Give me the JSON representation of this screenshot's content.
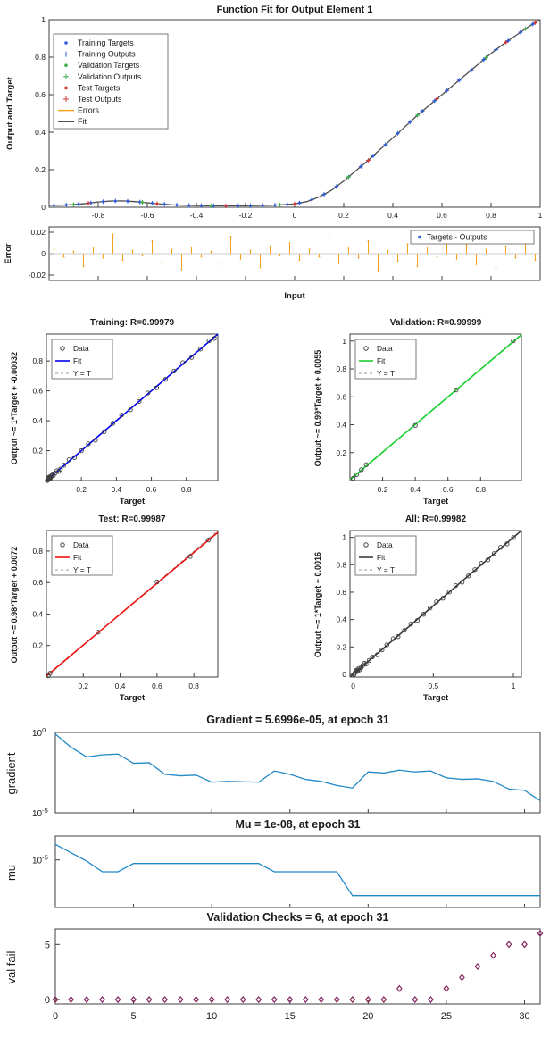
{
  "chart_data": {
    "function_fit": {
      "type": "line",
      "title": "Function Fit for Output Element 1",
      "xlabel": "Input",
      "ylabel": "Output and Target",
      "xlim": [
        -1,
        1
      ],
      "ylim": [
        0,
        1
      ],
      "xticks": [
        -0.8,
        -0.6,
        -0.4,
        -0.2,
        0,
        0.2,
        0.4,
        0.6,
        0.8,
        1
      ],
      "yticks": [
        0,
        0.2,
        0.4,
        0.6,
        0.8,
        1
      ],
      "colors": {
        "training": "#2e5bd7",
        "validation": "#3db04b",
        "test": "#d23a3a",
        "errors": "#f5a21e",
        "fit": "#4d4d4d"
      },
      "legend": [
        {
          "label": "Training Targets",
          "marker": "dot",
          "color": "#2e5bd7"
        },
        {
          "label": "Training Outputs",
          "marker": "plus",
          "color": "#2e5bd7"
        },
        {
          "label": "Validation Targets",
          "marker": "dot",
          "color": "#3db04b"
        },
        {
          "label": "Validation Outputs",
          "marker": "plus",
          "color": "#3db04b"
        },
        {
          "label": "Test Targets",
          "marker": "dot",
          "color": "#d23a3a"
        },
        {
          "label": "Test Outputs",
          "marker": "plus",
          "color": "#d23a3a"
        },
        {
          "label": "Errors",
          "marker": "line",
          "color": "#f5a21e"
        },
        {
          "label": "Fit",
          "marker": "line",
          "color": "#4d4d4d"
        }
      ],
      "fit_curve": {
        "x": [
          -1,
          -0.95,
          -0.9,
          -0.85,
          -0.8,
          -0.75,
          -0.7,
          -0.65,
          -0.6,
          -0.55,
          -0.5,
          -0.45,
          -0.4,
          -0.35,
          -0.3,
          -0.25,
          -0.2,
          -0.15,
          -0.1,
          -0.05,
          0,
          0.05,
          0.1,
          0.15,
          0.2,
          0.25,
          0.3,
          0.35,
          0.4,
          0.45,
          0.5,
          0.55,
          0.6,
          0.65,
          0.7,
          0.75,
          0.8,
          0.85,
          0.9,
          0.95,
          1
        ],
        "y": [
          0.01,
          0.011,
          0.014,
          0.02,
          0.028,
          0.033,
          0.034,
          0.03,
          0.024,
          0.018,
          0.013,
          0.01,
          0.009,
          0.008,
          0.008,
          0.008,
          0.008,
          0.009,
          0.01,
          0.013,
          0.018,
          0.03,
          0.055,
          0.09,
          0.14,
          0.195,
          0.25,
          0.31,
          0.37,
          0.43,
          0.49,
          0.545,
          0.6,
          0.655,
          0.71,
          0.765,
          0.82,
          0.87,
          0.915,
          0.96,
          1.0
        ]
      },
      "train_x": [
        -0.98,
        -0.93,
        -0.88,
        -0.83,
        -0.78,
        -0.73,
        -0.68,
        -0.63,
        -0.58,
        -0.53,
        -0.48,
        -0.43,
        -0.38,
        -0.33,
        -0.28,
        -0.23,
        -0.18,
        -0.13,
        -0.08,
        -0.03,
        0.02,
        0.07,
        0.12,
        0.17,
        0.22,
        0.27,
        0.32,
        0.37,
        0.42,
        0.47,
        0.52,
        0.57,
        0.62,
        0.67,
        0.72,
        0.77,
        0.82,
        0.87,
        0.92,
        0.97
      ],
      "val_x": [
        -0.9,
        -0.62,
        -0.34,
        -0.06,
        0.22,
        0.5,
        0.78,
        0.94
      ],
      "test_x": [
        -0.84,
        -0.56,
        -0.28,
        0,
        0.3,
        0.58,
        0.86,
        0.98
      ],
      "error_plot": {
        "ylabel": "Error",
        "ylim": [
          -0.025,
          0.025
        ],
        "yticks": [
          0.02,
          0,
          -0.02
        ],
        "legend_label": "Targets - Outputs",
        "stems": {
          "x": [
            -0.98,
            -0.94,
            -0.9,
            -0.86,
            -0.82,
            -0.78,
            -0.74,
            -0.7,
            -0.66,
            -0.62,
            -0.58,
            -0.54,
            -0.5,
            -0.46,
            -0.42,
            -0.38,
            -0.34,
            -0.3,
            -0.26,
            -0.22,
            -0.18,
            -0.14,
            -0.1,
            -0.06,
            -0.02,
            0.02,
            0.06,
            0.1,
            0.14,
            0.18,
            0.22,
            0.26,
            0.3,
            0.34,
            0.38,
            0.42,
            0.46,
            0.5,
            0.54,
            0.58,
            0.62,
            0.66,
            0.7,
            0.74,
            0.78,
            0.82,
            0.86,
            0.9,
            0.94,
            0.98
          ],
          "e": [
            0.004,
            -0.003,
            0.002,
            -0.012,
            0.005,
            -0.004,
            0.018,
            -0.006,
            0.003,
            -0.002,
            0.012,
            -0.008,
            0.004,
            -0.015,
            0.006,
            -0.003,
            0.002,
            -0.01,
            0.016,
            -0.005,
            0.003,
            -0.013,
            0.007,
            -0.002,
            0.01,
            -0.006,
            0.004,
            -0.003,
            0.015,
            -0.009,
            0.005,
            -0.004,
            0.012,
            -0.016,
            0.003,
            -0.007,
            0.009,
            -0.012,
            0.006,
            -0.003,
            0.014,
            -0.005,
            0.008,
            -0.01,
            0.004,
            -0.014,
            0.007,
            -0.004,
            0.011,
            -0.006
          ]
        }
      }
    },
    "regressions": [
      {
        "type": "scatter",
        "title": "Training: R=0.99979",
        "ylabel": "Output ~= 1*Target + -0.00032",
        "xlabel": "Target",
        "slope": 1,
        "intercept": -0.00032,
        "color": "#0000ee",
        "lim": [
          0,
          0.98
        ],
        "xticks": [
          0.2,
          0.4,
          0.6,
          0.8
        ],
        "yticks": [
          0.2,
          0.4,
          0.6,
          0.8
        ],
        "legend": [
          "Data",
          "Fit",
          "Y = T"
        ],
        "x": [
          0.005,
          0.008,
          0.01,
          0.012,
          0.015,
          0.018,
          0.02,
          0.022,
          0.025,
          0.03,
          0.035,
          0.04,
          0.05,
          0.06,
          0.07,
          0.08,
          0.1,
          0.13,
          0.16,
          0.2,
          0.24,
          0.28,
          0.33,
          0.38,
          0.43,
          0.48,
          0.53,
          0.58,
          0.63,
          0.68,
          0.73,
          0.78,
          0.83,
          0.88,
          0.93,
          0.96
        ]
      },
      {
        "type": "scatter",
        "title": "Validation: R=0.99999",
        "ylabel": "Output ~= 0.99*Target + 0.0055",
        "xlabel": "Target",
        "slope": 0.99,
        "intercept": 0.0055,
        "color": "#17d12e",
        "lim": [
          0,
          1.05
        ],
        "xticks": [
          0.2,
          0.4,
          0.6,
          0.8
        ],
        "yticks": [
          0.2,
          0.4,
          0.6,
          0.8,
          1
        ],
        "legend": [
          "Data",
          "Fit",
          "Y = T"
        ],
        "x": [
          0.02,
          0.04,
          0.07,
          0.1,
          0.4,
          0.65,
          1.0
        ]
      },
      {
        "type": "scatter",
        "title": "Test: R=0.99987",
        "ylabel": "Output ~= 0.98*Target + 0.0072",
        "xlabel": "Target",
        "slope": 0.98,
        "intercept": 0.0072,
        "color": "#ee1111",
        "lim": [
          0,
          0.93
        ],
        "xticks": [
          0.2,
          0.4,
          0.6,
          0.8
        ],
        "yticks": [
          0.2,
          0.4,
          0.6,
          0.8
        ],
        "legend": [
          "Data",
          "Fit",
          "Y = T"
        ],
        "x": [
          0.01,
          0.02,
          0.28,
          0.6,
          0.78,
          0.88
        ]
      },
      {
        "type": "scatter",
        "title": "All: R=0.99982",
        "ylabel": "Output ~= 1*Target + 0.0016",
        "xlabel": "Target",
        "slope": 1,
        "intercept": 0.0016,
        "color": "#3b3b3b",
        "lim": [
          -0.02,
          1.05
        ],
        "xticks": [
          0,
          0.5,
          1
        ],
        "yticks": [
          0,
          0.2,
          0.4,
          0.6,
          0.8,
          1
        ],
        "legend": [
          "Data",
          "Fit",
          "Y = T"
        ],
        "x": [
          0.005,
          0.01,
          0.015,
          0.02,
          0.025,
          0.03,
          0.035,
          0.04,
          0.05,
          0.06,
          0.07,
          0.08,
          0.1,
          0.12,
          0.15,
          0.18,
          0.21,
          0.25,
          0.28,
          0.32,
          0.36,
          0.4,
          0.44,
          0.48,
          0.52,
          0.56,
          0.6,
          0.64,
          0.68,
          0.72,
          0.76,
          0.8,
          0.84,
          0.88,
          0.92,
          0.96,
          1.0
        ]
      }
    ],
    "training_state": [
      {
        "type": "line",
        "title": "Gradient = 5.6996e-05, at epoch 31",
        "ylabel": "gradient",
        "scale": "log",
        "xlim": [
          0,
          31
        ],
        "ylim_exp": [
          -5,
          0
        ],
        "ytick_exps": [
          0,
          -5
        ],
        "line_color": "#2289c7",
        "values": [
          0.8,
          0.12,
          0.03,
          0.04,
          0.045,
          0.012,
          0.013,
          0.0025,
          0.002,
          0.0022,
          0.0008,
          0.0009,
          0.00085,
          0.0008,
          0.004,
          0.0025,
          0.0012,
          0.0009,
          0.0005,
          0.00035,
          0.0035,
          0.003,
          0.0045,
          0.0035,
          0.004,
          0.0015,
          0.0012,
          0.0013,
          0.0009,
          0.0003,
          0.00025,
          5.7e-05
        ]
      },
      {
        "type": "line",
        "title": "Mu = 1e-08, at epoch 31",
        "ylabel": "mu",
        "scale": "log",
        "xlim": [
          0,
          31
        ],
        "ylim_exp": [
          -9,
          -3
        ],
        "ytick_exps": [
          -5
        ],
        "line_color": "#2289c7",
        "values": [
          0.0002,
          4e-05,
          8e-06,
          1e-06,
          1e-06,
          5e-06,
          5e-06,
          5e-06,
          5e-06,
          5e-06,
          5e-06,
          5e-06,
          5e-06,
          5e-06,
          1e-06,
          1e-06,
          1e-06,
          1e-06,
          1e-06,
          1e-08,
          1e-08,
          1e-08,
          1e-08,
          1e-08,
          1e-08,
          1e-08,
          1e-08,
          1e-08,
          1e-08,
          1e-08,
          1e-08,
          1e-08
        ]
      },
      {
        "type": "scatter",
        "title": "Validation Checks = 6, at epoch 31",
        "ylabel": "val fail",
        "scale": "linear",
        "xlim": [
          0,
          31
        ],
        "ylim": [
          -0.4,
          6.4
        ],
        "yticks": [
          0,
          5
        ],
        "xticks": [
          0,
          5,
          10,
          15,
          20,
          25,
          30
        ],
        "marker_color": "#86275f",
        "values": [
          0,
          0,
          0,
          0,
          0,
          0,
          0,
          0,
          0,
          0,
          0,
          0,
          0,
          0,
          0,
          0,
          0,
          0,
          0,
          0,
          0,
          0,
          1,
          0,
          0,
          1,
          2,
          3,
          4,
          5,
          5,
          6
        ]
      }
    ]
  }
}
